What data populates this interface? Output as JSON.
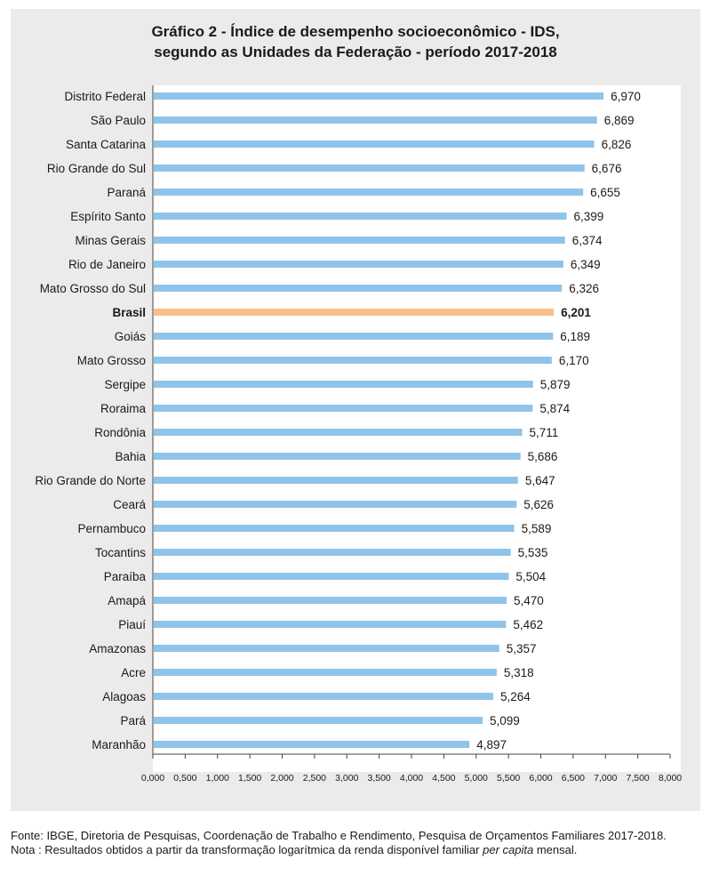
{
  "chart_data": {
    "type": "bar",
    "orientation": "horizontal",
    "title_line1": "Gráfico 2 -  Índice de desempenho socioeconômico - IDS,",
    "title_line2": "segundo as Unidades da Federação - período 2017-2018",
    "categories": [
      "Distrito Federal",
      "São Paulo",
      "Santa Catarina",
      "Rio Grande do Sul",
      "Paraná",
      "Espírito Santo",
      "Minas Gerais",
      "Rio de Janeiro",
      "Mato Grosso do Sul",
      "Brasil",
      "Goiás",
      "Mato Grosso",
      "Sergipe",
      "Roraima",
      "Rondônia",
      "Bahia",
      "Rio Grande do Norte",
      "Ceará",
      "Pernambuco",
      "Tocantins",
      "Paraíba",
      "Amapá",
      "Piauí",
      "Amazonas",
      "Acre",
      "Alagoas",
      "Pará",
      "Maranhão"
    ],
    "values": [
      6.97,
      6.869,
      6.826,
      6.676,
      6.655,
      6.399,
      6.374,
      6.349,
      6.326,
      6.201,
      6.189,
      6.17,
      5.879,
      5.874,
      5.711,
      5.686,
      5.647,
      5.626,
      5.589,
      5.535,
      5.504,
      5.47,
      5.462,
      5.357,
      5.318,
      5.264,
      5.099,
      4.897
    ],
    "value_labels": [
      "6,970",
      "6,869",
      "6,826",
      "6,676",
      "6,655",
      "6,399",
      "6,374",
      "6,349",
      "6,326",
      "6,201",
      "6,189",
      "6,170",
      "5,879",
      "5,874",
      "5,711",
      "5,686",
      "5,647",
      "5,626",
      "5,589",
      "5,535",
      "5,504",
      "5,470",
      "5,462",
      "5,357",
      "5,318",
      "5,264",
      "5,099",
      "4,897"
    ],
    "highlight": "Brasil",
    "xlim": [
      0,
      8
    ],
    "xticks": [
      "0,000",
      "0,500",
      "1,000",
      "1,500",
      "2,000",
      "2,500",
      "3,000",
      "3,500",
      "4,000",
      "4,500",
      "5,000",
      "5,500",
      "6,000",
      "6,500",
      "7,000",
      "7,500",
      "8,000"
    ],
    "colors": {
      "bar": "#8ec4ea",
      "highlight": "#f8c08b",
      "panel": "#ebebeb"
    },
    "grid": false
  },
  "footer": {
    "source": "Fonte: IBGE, Diretoria de Pesquisas, Coordenação de Trabalho e Rendimento, Pesquisa de Orçamentos Familiares 2017-2018.",
    "note_prefix": "Nota : Resultados obtidos a partir da transformação logarítmica da renda disponível familiar ",
    "note_italic": "per capita",
    "note_suffix": " mensal."
  }
}
